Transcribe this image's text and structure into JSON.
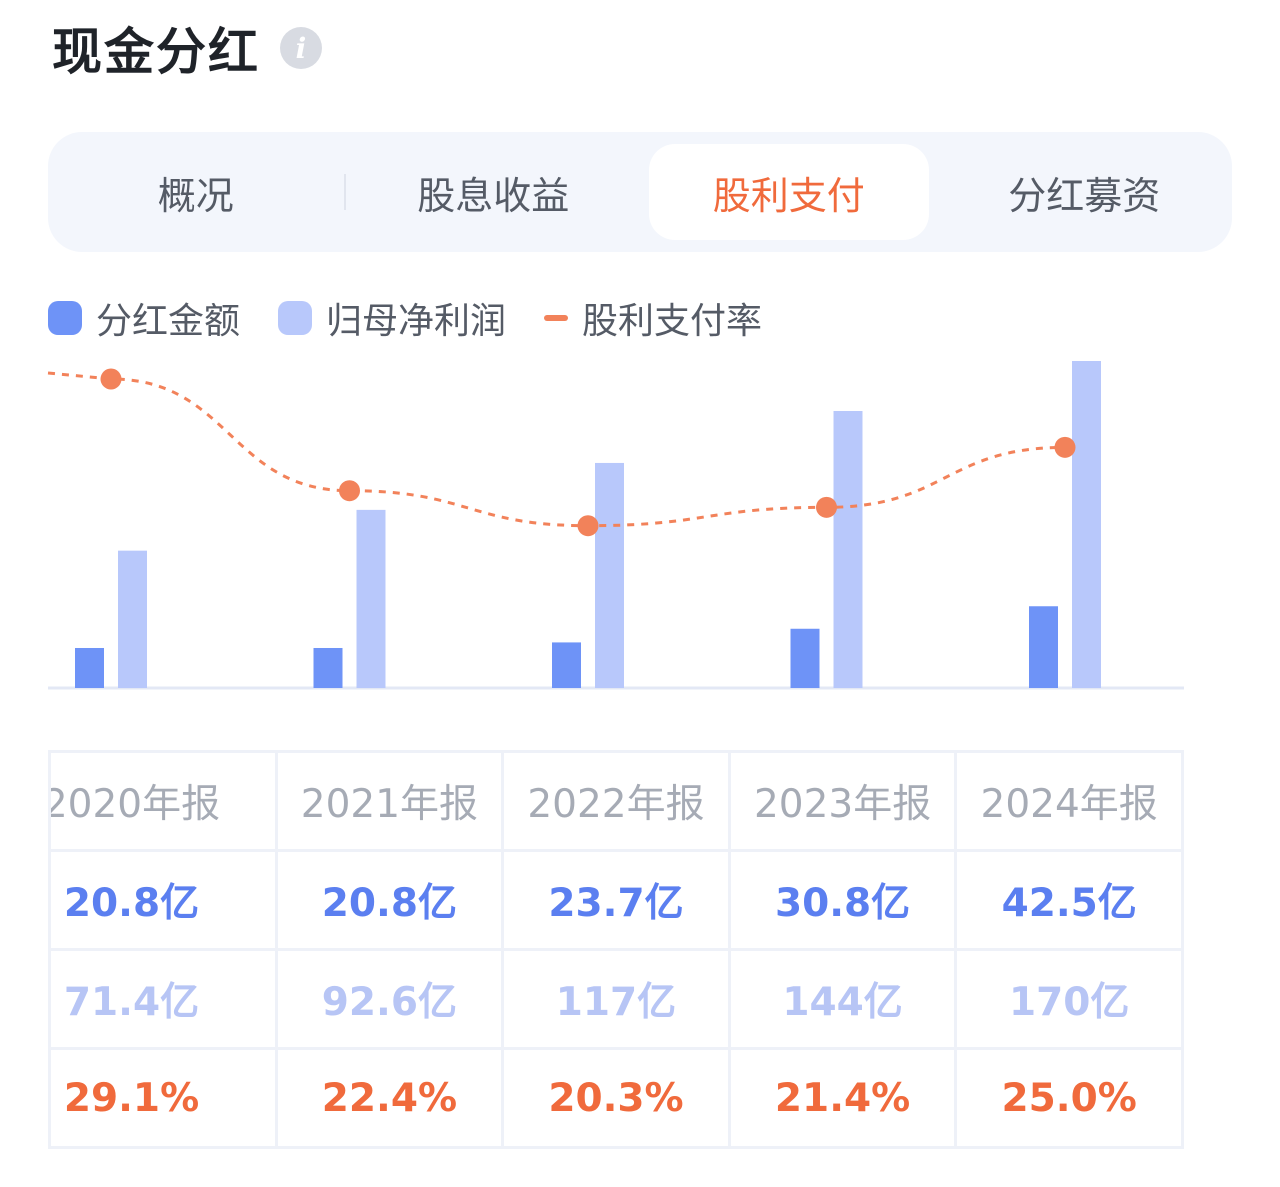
{
  "header": {
    "title": "现金分红",
    "info_icon": "info-icon"
  },
  "tabs": [
    {
      "label": "概况",
      "active": false
    },
    {
      "label": "股息收益",
      "active": false
    },
    {
      "label": "股利支付",
      "active": true
    },
    {
      "label": "分红募资",
      "active": false
    }
  ],
  "legend": [
    {
      "label": "分红金额",
      "color": "#6e93f7"
    },
    {
      "label": "归母净利润",
      "color": "#b8c8fb"
    },
    {
      "label": "股利支付率",
      "color": "#f2825a"
    }
  ],
  "chart_data": {
    "type": "bar",
    "categories": [
      "2020年报",
      "2021年报",
      "2022年报",
      "2023年报",
      "2024年报"
    ],
    "series": [
      {
        "name": "分红金额",
        "type": "bar",
        "unit": "亿",
        "values": [
          20.8,
          20.8,
          23.7,
          30.8,
          42.5
        ],
        "color": "#6e93f7"
      },
      {
        "name": "归母净利润",
        "type": "bar",
        "unit": "亿",
        "values": [
          71.4,
          92.6,
          117,
          144,
          170
        ],
        "color": "#b8c8fb"
      },
      {
        "name": "股利支付率",
        "type": "line",
        "unit": "%",
        "values": [
          29.1,
          22.4,
          20.3,
          21.4,
          25.0
        ],
        "color": "#f2825a"
      }
    ],
    "legend_position": "top-left",
    "grid": false
  },
  "table": {
    "years": [
      "2020年报",
      "2021年报",
      "2022年报",
      "2023年报",
      "2024年报"
    ],
    "dividend": [
      "20.8亿",
      "20.8亿",
      "23.7亿",
      "30.8亿",
      "42.5亿"
    ],
    "net_profit": [
      "71.4亿",
      "92.6亿",
      "117亿",
      "144亿",
      "170亿"
    ],
    "payout_ratio": [
      "29.1%",
      "22.4%",
      "20.3%",
      "21.4%",
      "25.0%"
    ]
  }
}
